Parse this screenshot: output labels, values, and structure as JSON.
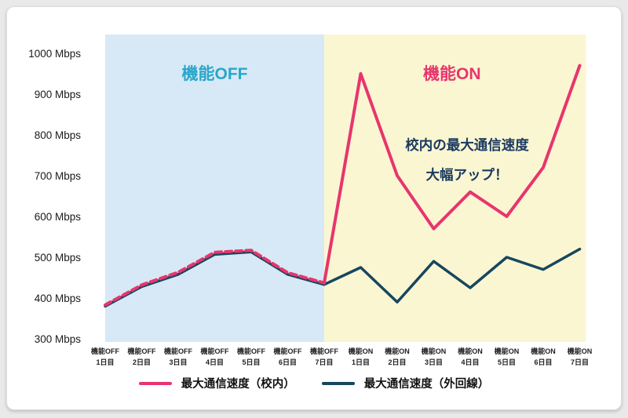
{
  "chart_data": {
    "type": "line",
    "title": "",
    "xlabel": "",
    "ylabel": "",
    "ylim": [
      300,
      1000
    ],
    "y_tick_step": 100,
    "y_tick_labels": [
      "1000 Mbps",
      "900 Mbps",
      "800 Mbps",
      "700 Mbps",
      "600 Mbps",
      "500 Mbps",
      "400 Mbps",
      "300 Mbps"
    ],
    "grid": false,
    "legend_position": "bottom",
    "categories": [
      {
        "period": "機能OFF",
        "day": "1日目"
      },
      {
        "period": "機能OFF",
        "day": "2日目"
      },
      {
        "period": "機能OFF",
        "day": "3日目"
      },
      {
        "period": "機能OFF",
        "day": "4日目"
      },
      {
        "period": "機能OFF",
        "day": "5日目"
      },
      {
        "period": "機能OFF",
        "day": "6日目"
      },
      {
        "period": "機能OFF",
        "day": "7日目"
      },
      {
        "period": "機能ON",
        "day": "1日目"
      },
      {
        "period": "機能ON",
        "day": "2日目"
      },
      {
        "period": "機能ON",
        "day": "3日目"
      },
      {
        "period": "機能ON",
        "day": "4日目"
      },
      {
        "period": "機能ON",
        "day": "5日目"
      },
      {
        "period": "機能ON",
        "day": "6日目"
      },
      {
        "period": "機能ON",
        "day": "7日目"
      }
    ],
    "series": [
      {
        "name": "最大通信速度（校内）",
        "color": "#e8356d",
        "dashed_until_index": 6,
        "values": [
          383,
          432,
          463,
          512,
          517,
          462,
          437,
          950,
          700,
          570,
          660,
          600,
          720,
          970
        ]
      },
      {
        "name": "最大通信速度（外回線）",
        "color": "#16475f",
        "dashed_until_index": -1,
        "values": [
          380,
          428,
          458,
          507,
          513,
          458,
          433,
          475,
          390,
          490,
          425,
          500,
          470,
          520
        ]
      }
    ],
    "regions": [
      {
        "label": "機能OFF",
        "fill": "#d7e9f6",
        "label_color": "#2aa6ca",
        "from": 0,
        "to": 6
      },
      {
        "label": "機能ON",
        "fill": "#fbf6d2",
        "label_color": "#e8356d",
        "from": 6,
        "to": 13
      }
    ],
    "annotation": {
      "line1": "校内の最大通信速度",
      "line2": "大幅アップ！",
      "color": "#1b3b60"
    }
  }
}
